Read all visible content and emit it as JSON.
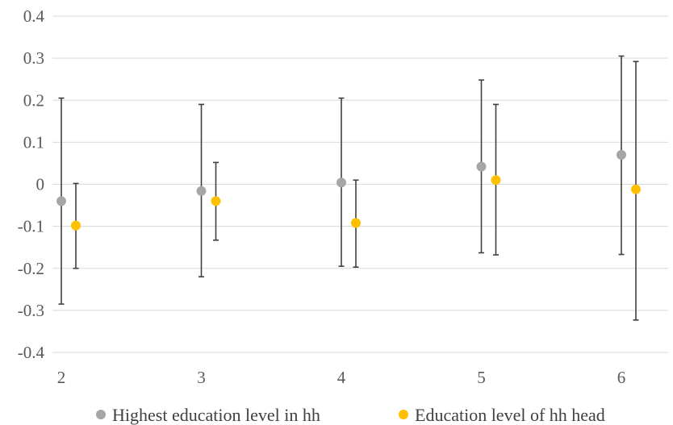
{
  "chart_data": {
    "type": "scatter",
    "title": "",
    "xlabel": "",
    "ylabel": "",
    "categories": [
      "2",
      "3",
      "4",
      "5",
      "6"
    ],
    "y_ticks": [
      "0.4",
      "0.3",
      "0.2",
      "0.1",
      "0",
      "-0.1",
      "-0.2",
      "-0.3",
      "-0.4"
    ],
    "ylim": [
      -0.4,
      0.4
    ],
    "grid": true,
    "legend_position": "bottom",
    "series": [
      {
        "name": "Highest education level in hh",
        "color": "#a6a6a6",
        "values": [
          -0.04,
          -0.016,
          0.004,
          0.042,
          0.07
        ],
        "err_low": [
          -0.285,
          -0.22,
          -0.195,
          -0.163,
          -0.167
        ],
        "err_high": [
          0.205,
          0.19,
          0.205,
          0.248,
          0.305
        ]
      },
      {
        "name": "Education level of hh head",
        "color": "#ffc000",
        "values": [
          -0.098,
          -0.04,
          -0.092,
          0.01,
          -0.012
        ],
        "err_low": [
          -0.2,
          -0.133,
          -0.197,
          -0.168,
          -0.323
        ],
        "err_high": [
          0.002,
          0.052,
          0.01,
          0.19,
          0.292
        ]
      }
    ]
  }
}
